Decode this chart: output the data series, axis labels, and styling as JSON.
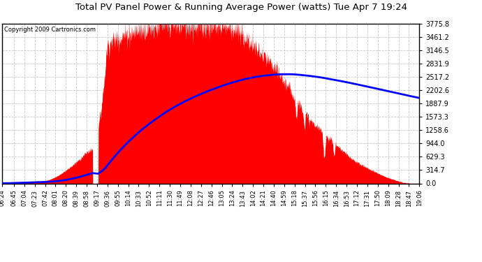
{
  "title": "Total PV Panel Power & Running Average Power (watts) Tue Apr 7 19:24",
  "copyright": "Copyright 2009 Cartronics.com",
  "y_max": 3775.8,
  "y_ticks": [
    0.0,
    314.7,
    629.3,
    944.0,
    1258.6,
    1573.3,
    1887.9,
    2202.6,
    2517.2,
    2831.9,
    3146.5,
    3461.2,
    3775.8
  ],
  "x_tick_labels": [
    "06:24",
    "06:45",
    "07:04",
    "07:23",
    "07:42",
    "08:01",
    "08:20",
    "08:39",
    "08:58",
    "09:17",
    "09:36",
    "09:55",
    "10:14",
    "10:33",
    "10:52",
    "11:11",
    "11:30",
    "11:49",
    "12:08",
    "12:27",
    "12:46",
    "13:05",
    "13:24",
    "13:43",
    "14:02",
    "14:21",
    "14:40",
    "14:59",
    "15:18",
    "15:37",
    "15:56",
    "16:15",
    "16:34",
    "16:53",
    "17:12",
    "17:31",
    "17:50",
    "18:09",
    "18:28",
    "18:47",
    "19:06"
  ],
  "background_color": "#ffffff",
  "plot_bg_color": "#ffffff",
  "fill_color": "#ff0000",
  "avg_line_color": "#0000ff",
  "grid_color": "#c8c8c8",
  "title_color": "#000000",
  "border_color": "#000000"
}
